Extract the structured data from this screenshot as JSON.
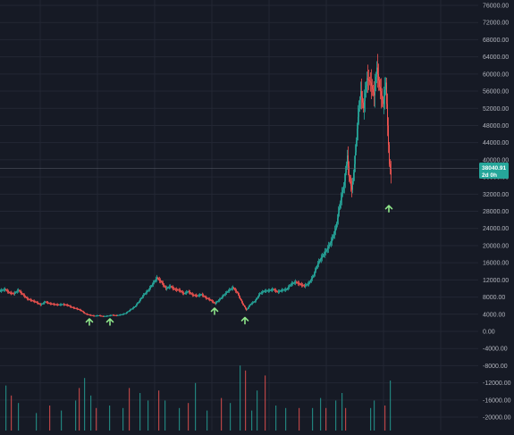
{
  "chart_data": {
    "type": "candlestick",
    "title": "",
    "xlabel": "",
    "ylabel": "",
    "ylim": [
      -21000,
      76000
    ],
    "y_ticks": [
      76000,
      72000,
      68000,
      64000,
      60000,
      56000,
      52000,
      48000,
      44000,
      40000,
      36000,
      32000,
      28000,
      24000,
      20000,
      16000,
      12000,
      8000,
      4000,
      0,
      -4000,
      -8000,
      -12000,
      -16000,
      -20000
    ],
    "y_tick_labels": [
      "76000.00",
      "72000.00",
      "68000.00",
      "64000.00",
      "60000.00",
      "56000.00",
      "52000.00",
      "48000.00",
      "44000.00",
      "40000.00",
      "36000.00",
      "32000.00",
      "28000.00",
      "24000.00",
      "20000.00",
      "16000.00",
      "12000.00",
      "8000.00",
      "4000.00",
      "0.00",
      "-4000.00",
      "-8000.00",
      "-12000.00",
      "-16000.00",
      "-20000.00"
    ],
    "grid": true,
    "colors": {
      "background": "#161a25",
      "grid": "#232734",
      "up": "#26a69a",
      "down": "#ef5350",
      "signal": "#8fe68a",
      "axis_text": "#b2b5be",
      "crosshair": "#5d606b"
    },
    "last_price": {
      "value": 38040.91,
      "label": "38040.91",
      "countdown": "2d 0h"
    },
    "price_path": [
      [
        0,
        9500
      ],
      [
        5,
        9800
      ],
      [
        10,
        9000
      ],
      [
        15,
        8800
      ],
      [
        20,
        9600
      ],
      [
        25,
        8600
      ],
      [
        30,
        7600
      ],
      [
        35,
        7200
      ],
      [
        40,
        6800
      ],
      [
        45,
        6200
      ],
      [
        50,
        6900
      ],
      [
        55,
        6500
      ],
      [
        60,
        6300
      ],
      [
        65,
        6200
      ],
      [
        70,
        6300
      ],
      [
        75,
        6100
      ],
      [
        80,
        5600
      ],
      [
        85,
        5300
      ],
      [
        90,
        4900
      ],
      [
        95,
        4100
      ],
      [
        100,
        3800
      ],
      [
        105,
        3600
      ],
      [
        110,
        3700
      ],
      [
        115,
        3500
      ],
      [
        120,
        3600
      ],
      [
        125,
        3800
      ],
      [
        130,
        3700
      ],
      [
        135,
        3900
      ],
      [
        140,
        4200
      ],
      [
        145,
        5000
      ],
      [
        150,
        5700
      ],
      [
        155,
        7000
      ],
      [
        160,
        8500
      ],
      [
        165,
        9500
      ],
      [
        170,
        11000
      ],
      [
        175,
        12500
      ],
      [
        180,
        11500
      ],
      [
        185,
        10000
      ],
      [
        190,
        10500
      ],
      [
        195,
        9800
      ],
      [
        200,
        9600
      ],
      [
        205,
        8800
      ],
      [
        210,
        9300
      ],
      [
        215,
        8500
      ],
      [
        220,
        8300
      ],
      [
        225,
        8600
      ],
      [
        230,
        7800
      ],
      [
        235,
        7300
      ],
      [
        240,
        6500
      ],
      [
        245,
        7400
      ],
      [
        250,
        8500
      ],
      [
        255,
        9500
      ],
      [
        260,
        10200
      ],
      [
        265,
        9000
      ],
      [
        270,
        6800
      ],
      [
        275,
        5000
      ],
      [
        280,
        6400
      ],
      [
        285,
        7100
      ],
      [
        290,
        8800
      ],
      [
        295,
        9400
      ],
      [
        300,
        9500
      ],
      [
        305,
        9800
      ],
      [
        310,
        9200
      ],
      [
        315,
        9600
      ],
      [
        320,
        9800
      ],
      [
        325,
        11000
      ],
      [
        330,
        11500
      ],
      [
        335,
        11000
      ],
      [
        340,
        10600
      ],
      [
        345,
        11200
      ],
      [
        350,
        13000
      ],
      [
        355,
        15800
      ],
      [
        360,
        17500
      ],
      [
        365,
        19000
      ],
      [
        370,
        21000
      ],
      [
        375,
        24000
      ],
      [
        380,
        30000
      ],
      [
        385,
        35000
      ],
      [
        388,
        41000
      ],
      [
        390,
        36000
      ],
      [
        393,
        33000
      ],
      [
        396,
        39000
      ],
      [
        400,
        50000
      ],
      [
        403,
        56000
      ],
      [
        406,
        52000
      ],
      [
        410,
        59000
      ],
      [
        414,
        58000
      ],
      [
        418,
        55000
      ],
      [
        421,
        61500
      ],
      [
        424,
        57000
      ],
      [
        428,
        53000
      ],
      [
        431,
        58000
      ],
      [
        433,
        48000
      ],
      [
        435,
        39000
      ],
      [
        437,
        36500
      ]
    ],
    "signal_markers": [
      {
        "index": 100,
        "value": 2200
      },
      {
        "index": 123,
        "value": 2200
      },
      {
        "index": 240,
        "value": 4700
      },
      {
        "index": 274,
        "value": 2500
      },
      {
        "index": 435,
        "value": 28600
      }
    ],
    "volume_bars": [
      {
        "index": 6,
        "value": 9000
      },
      {
        "index": 12,
        "value": 7000
      },
      {
        "index": 20,
        "value": 5500
      },
      {
        "index": 40,
        "value": 3500
      },
      {
        "index": 55,
        "value": 5000
      },
      {
        "index": 68,
        "value": 4000
      },
      {
        "index": 84,
        "value": 6000
      },
      {
        "index": 88,
        "value": 8500
      },
      {
        "index": 94,
        "value": 10500
      },
      {
        "index": 101,
        "value": 7000
      },
      {
        "index": 107,
        "value": 4500
      },
      {
        "index": 122,
        "value": 5000
      },
      {
        "index": 137,
        "value": 4500
      },
      {
        "index": 144,
        "value": 8500
      },
      {
        "index": 156,
        "value": 7500
      },
      {
        "index": 165,
        "value": 6000
      },
      {
        "index": 177,
        "value": 8000
      },
      {
        "index": 184,
        "value": 6000
      },
      {
        "index": 200,
        "value": 4500
      },
      {
        "index": 210,
        "value": 5500
      },
      {
        "index": 218,
        "value": 9500
      },
      {
        "index": 231,
        "value": 4000
      },
      {
        "index": 247,
        "value": 6500
      },
      {
        "index": 257,
        "value": 5500
      },
      {
        "index": 268,
        "value": 13000
      },
      {
        "index": 274,
        "value": 12000
      },
      {
        "index": 281,
        "value": 4000
      },
      {
        "index": 287,
        "value": 8000
      },
      {
        "index": 296,
        "value": 11000
      },
      {
        "index": 308,
        "value": 5000
      },
      {
        "index": 319,
        "value": 4500
      },
      {
        "index": 334,
        "value": 4500
      },
      {
        "index": 349,
        "value": 4500
      },
      {
        "index": 358,
        "value": 6500
      },
      {
        "index": 364,
        "value": 4500
      },
      {
        "index": 375,
        "value": 6000
      },
      {
        "index": 382,
        "value": 7500
      },
      {
        "index": 386,
        "value": 4500
      },
      {
        "index": 414,
        "value": 4500
      },
      {
        "index": 418,
        "value": 6000
      },
      {
        "index": 430,
        "value": 5000
      },
      {
        "index": 436,
        "value": 10000
      }
    ]
  }
}
